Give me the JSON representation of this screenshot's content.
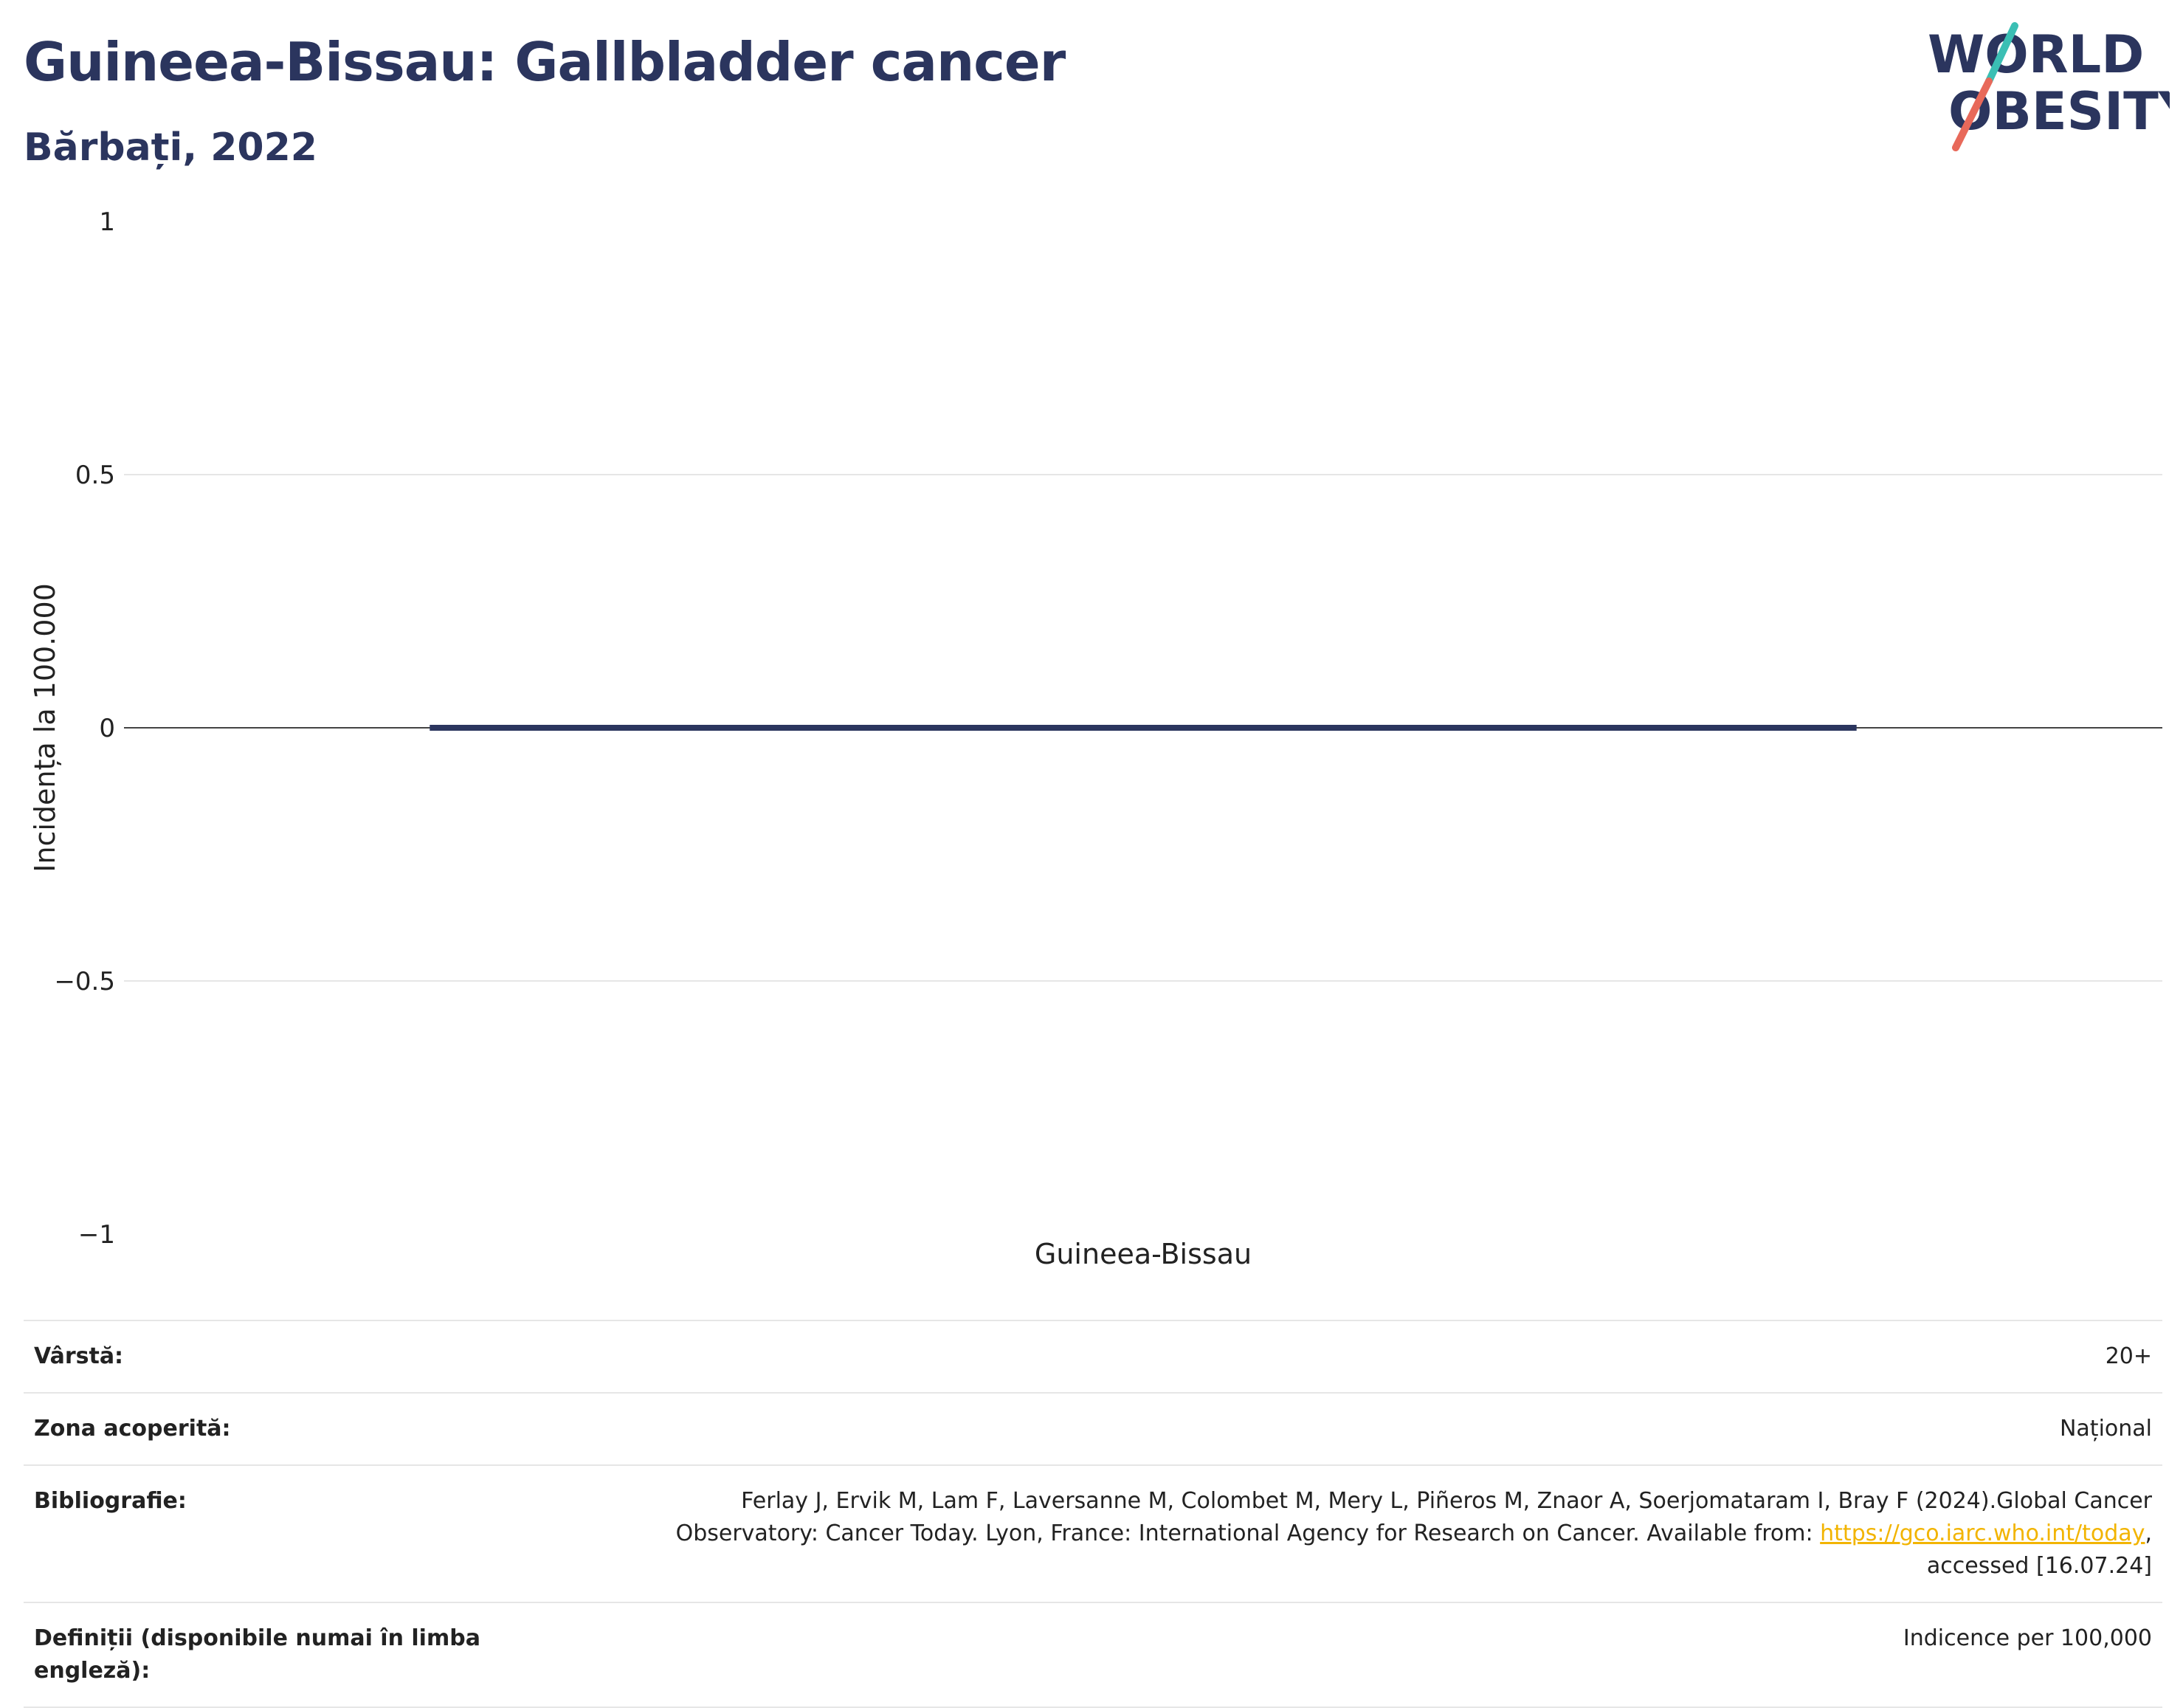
{
  "header": {
    "title": "Guineea-Bissau: Gallbladder cancer",
    "subtitle": "Bărbați, 2022"
  },
  "logo": {
    "line1": "WORLD",
    "line2": "OBESITY",
    "colors": {
      "text": "#2b355e",
      "slash_top": "#3bbfb4",
      "slash_bottom": "#e8695a"
    }
  },
  "chart_data": {
    "type": "bar",
    "categories": [
      "Guineea-Bissau"
    ],
    "values": [
      0
    ],
    "title": "Guineea-Bissau: Gallbladder cancer",
    "subtitle": "Bărbați, 2022",
    "xlabel": "",
    "ylabel": "Incidența la 100.000",
    "ylim": [
      -1,
      1
    ],
    "yticks": [
      1,
      0.5,
      0,
      -0.5,
      -1
    ],
    "ytick_labels": [
      "1",
      "0.5",
      "0",
      "−0.5",
      "−1"
    ],
    "grid": true,
    "bar_color": "#2b355e"
  },
  "info": {
    "rows": [
      {
        "key": "Vârstă:",
        "value": "20+"
      },
      {
        "key": "Zona acoperită:",
        "value": "Național"
      },
      {
        "key": "Bibliografie:",
        "value_line1": "Ferlay J, Ervik M, Lam F, Laversanne M, Colombet M, Mery L, Piñeros M, Znaor A, Soerjomataram I, Bray F (2024).Global Cancer",
        "value_line2_pre": "Observatory: Cancer Today. Lyon, France: International Agency for Research on Cancer. Available from: ",
        "link_text": "https://gco.iarc.who.int/today",
        "value_line2_post": ",",
        "value_line3": "accessed [16.07.24]"
      },
      {
        "key": "Definiții (disponibile numai în limba engleză):",
        "value": "Indicence per 100,000"
      }
    ]
  }
}
